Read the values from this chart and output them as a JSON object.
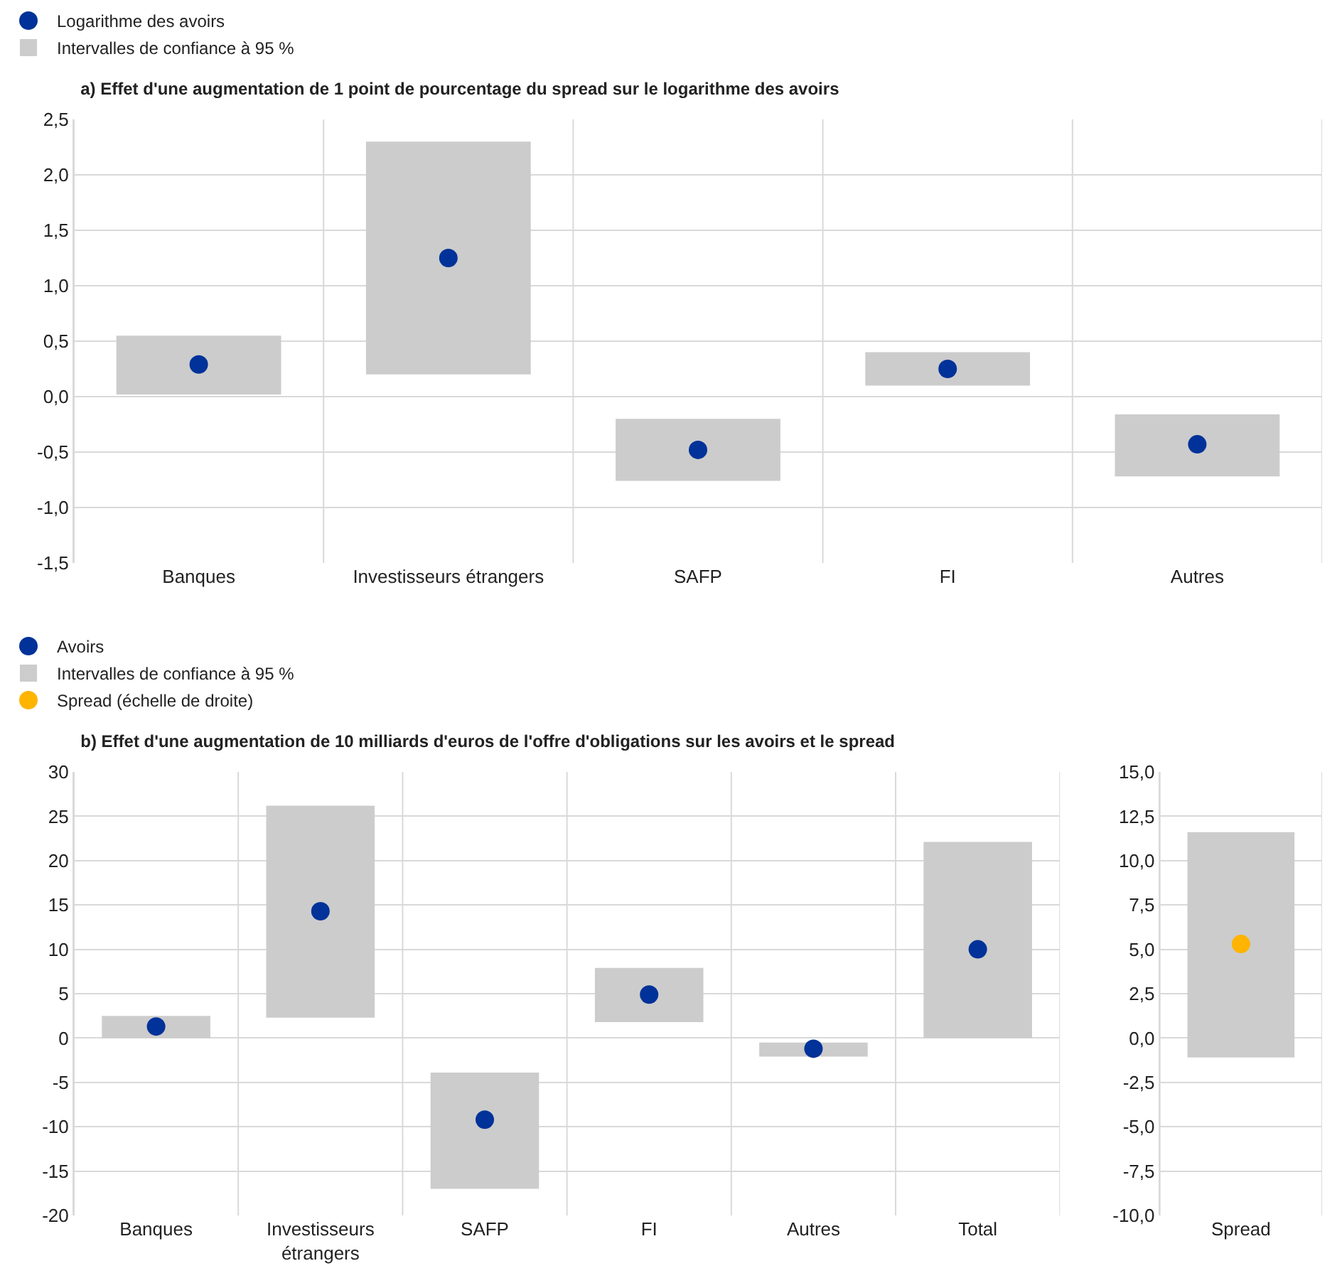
{
  "chart_data": [
    {
      "type": "scatter",
      "title": "a) Effet d'une augmentation de 1 point de pourcentage du spread sur le logarithme des avoirs",
      "categories": [
        "Banques",
        "Investisseurs étrangers",
        "SAFP",
        "FI",
        "Autres"
      ],
      "series": [
        {
          "name": "Logarithme des avoirs",
          "color": "#003299",
          "values": [
            0.29,
            1.25,
            -0.48,
            0.25,
            -0.43
          ]
        },
        {
          "name": "Intervalles de confiance à 95 %",
          "type": "bar",
          "color": "#cccccc",
          "base": [
            0.02,
            0.2,
            -0.76,
            0.1,
            -0.72
          ],
          "values": [
            0.53,
            2.1,
            0.56,
            0.3,
            0.56
          ]
        }
      ],
      "ylim": [
        -1.5,
        2.5
      ],
      "yticks": [
        {
          "value": -1.5,
          "label": "-1,5"
        },
        {
          "value": -1,
          "label": "-1,0"
        },
        {
          "value": -0.5,
          "label": "-0,5"
        },
        {
          "value": 0,
          "label": "0,0"
        },
        {
          "value": 0.5,
          "label": "0,5"
        },
        {
          "value": 1,
          "label": "1,0"
        },
        {
          "value": 1.5,
          "label": "1,5"
        },
        {
          "value": 2,
          "label": "2,0"
        },
        {
          "value": 2.5,
          "label": "2,5"
        }
      ],
      "grid": true,
      "legend": "top left",
      "marker": "circle"
    },
    {
      "type": "scatter",
      "title": "b) Effet d'une augmentation de 10 milliards d'euros de l'offre d'obligations sur les avoirs et le spread",
      "categories": [
        "Banques",
        "Investisseurs étrangers",
        "SAFP",
        "FI",
        "Autres",
        "Total",
        "Spread"
      ],
      "series": [
        {
          "name": "Avoirs",
          "color": "#003299",
          "values": [
            1.3,
            14.3,
            -9.2,
            4.9,
            -1.2,
            10,
            null
          ]
        },
        {
          "name": "Intervalles de confiance à 95 %",
          "type": "bar",
          "color": "#cccccc",
          "base": [
            0,
            2.3,
            -17,
            1.8,
            -2.1,
            0,
            null
          ],
          "values": [
            2.5,
            23.9,
            13.1,
            6.1,
            1.6,
            22.1,
            null
          ]
        },
        {
          "name": "Spread (échelle de droite)",
          "axis": "y2",
          "color": "#ffb400",
          "values": [
            null,
            null,
            null,
            null,
            null,
            null,
            5.3
          ]
        },
        {
          "type": "bar",
          "axis": "y2",
          "color": "#cccccc",
          "base": [
            null,
            null,
            null,
            null,
            null,
            null,
            -1.1
          ],
          "values": [
            null,
            null,
            null,
            null,
            null,
            null,
            12.7
          ]
        }
      ],
      "ylim": [
        -20,
        30
      ],
      "yticks": [
        -20,
        -15,
        -10,
        -5,
        0,
        5,
        10,
        15,
        20,
        25,
        30
      ],
      "y2lim": [
        -10,
        15
      ],
      "y2ticks": [
        {
          "value": -10,
          "label": "-10,0"
        },
        {
          "value": -7.5,
          "label": "-7,5"
        },
        {
          "value": -5,
          "label": "-5,0"
        },
        {
          "value": -2.5,
          "label": "-2,5"
        },
        {
          "value": 0,
          "label": "0,0"
        },
        {
          "value": 2.5,
          "label": "2,5"
        },
        {
          "value": 5,
          "label": "5,0"
        },
        {
          "value": 7.5,
          "label": "7,5"
        },
        {
          "value": 10,
          "label": "10,0"
        },
        {
          "value": 12.5,
          "label": "12,5"
        },
        {
          "value": 15,
          "label": "15,0"
        }
      ],
      "grid": true,
      "legend": "top left",
      "marker": "circle"
    }
  ]
}
